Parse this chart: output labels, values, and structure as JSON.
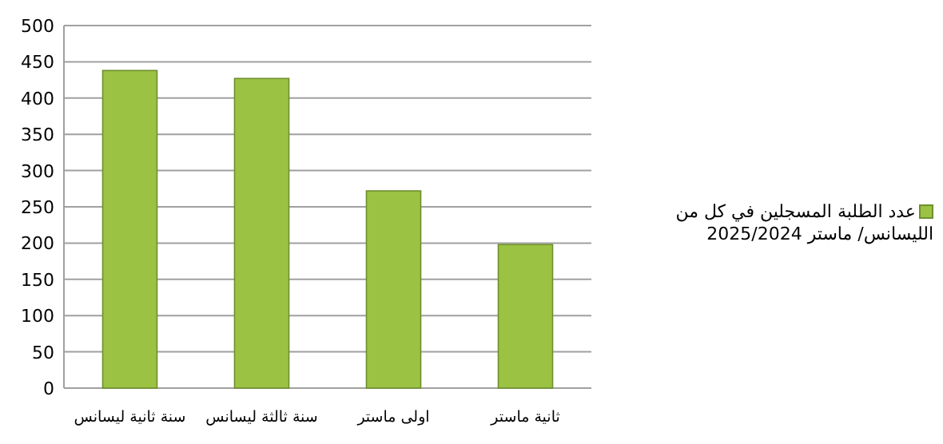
{
  "chart_data": {
    "type": "bar",
    "categories": [
      "سنة ثانية ليسانس",
      "سنة ثالثة ليسانس",
      "اولى ماستر",
      "ثانية ماستر"
    ],
    "series": [
      {
        "name": "عدد الطلبة المسجلين في كل من الليسانس/ ماستر 2025/2024",
        "color": "#9bc242",
        "values": [
          438,
          427,
          272,
          198
        ]
      }
    ],
    "ylim": [
      0,
      500
    ],
    "yticks": [
      0,
      50,
      100,
      150,
      200,
      250,
      300,
      350,
      400,
      450,
      500
    ],
    "grid": "y",
    "legend": "right"
  }
}
